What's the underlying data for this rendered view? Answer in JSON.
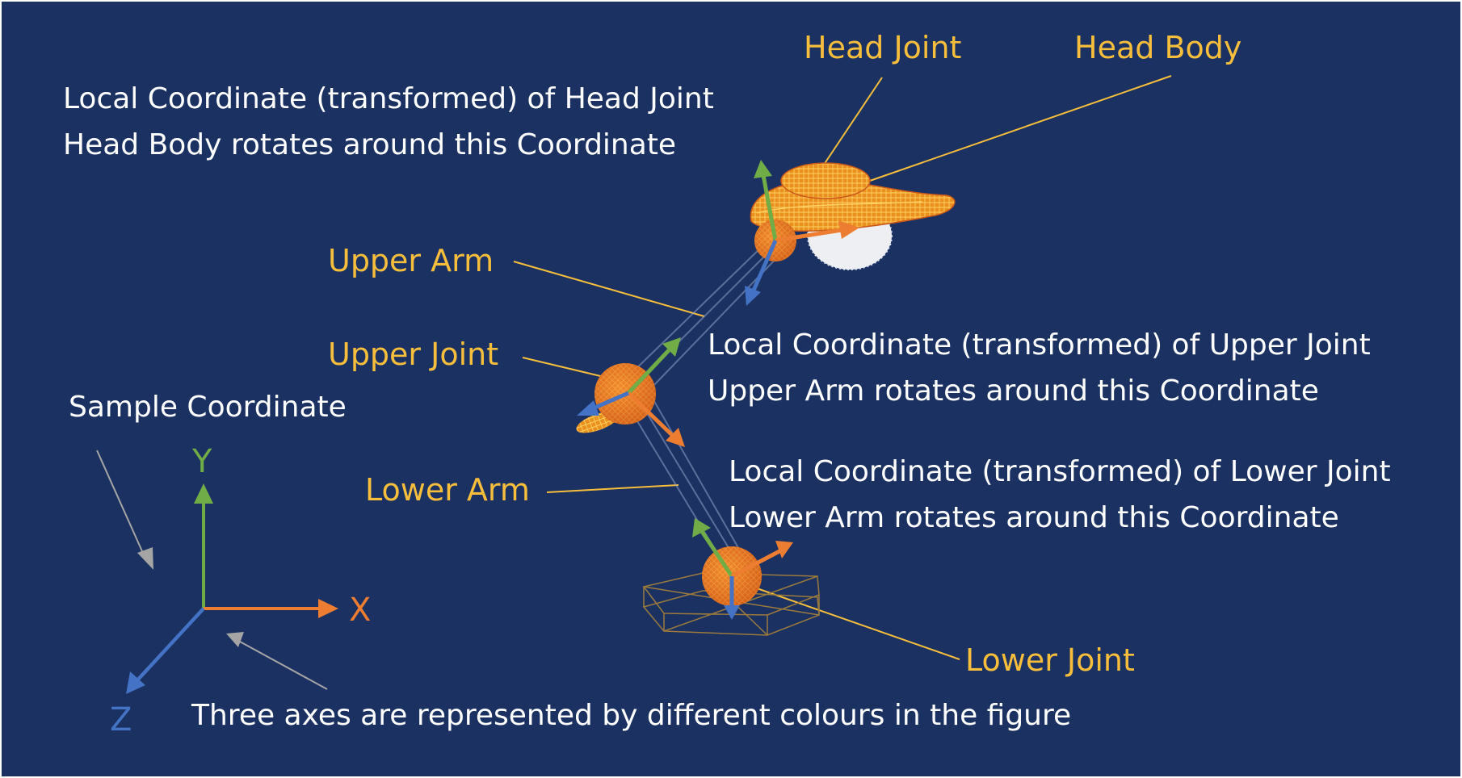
{
  "colors": {
    "background": "#1a3162",
    "x_axis": "#ed7d31",
    "y_axis": "#70ad47",
    "z_axis": "#4472c4",
    "callout_text": "#f7be3c",
    "note_text": "#ffffff",
    "pointer_arrow": "#a5a5a5"
  },
  "labels": {
    "head_joint": "Head Joint",
    "head_body": "Head Body",
    "upper_arm": "Upper Arm",
    "upper_joint": "Upper Joint",
    "lower_arm": "Lower Arm",
    "lower_joint": "Lower Joint",
    "sample_coordinate": "Sample Coordinate"
  },
  "notes": {
    "head_line1": "Local Coordinate (transformed) of Head Joint",
    "head_line2": "Head Body rotates around this Coordinate",
    "upper_line1": "Local Coordinate (transformed) of Upper Joint",
    "upper_line2": "Upper Arm rotates around this Coordinate",
    "lower_line1": "Local Coordinate (transformed) of Lower Joint",
    "lower_line2": "Lower Arm rotates around this Coordinate",
    "caption": "Three axes are represented by different colours in the figure"
  },
  "axes": {
    "x": "X",
    "y": "Y",
    "z": "Z"
  }
}
